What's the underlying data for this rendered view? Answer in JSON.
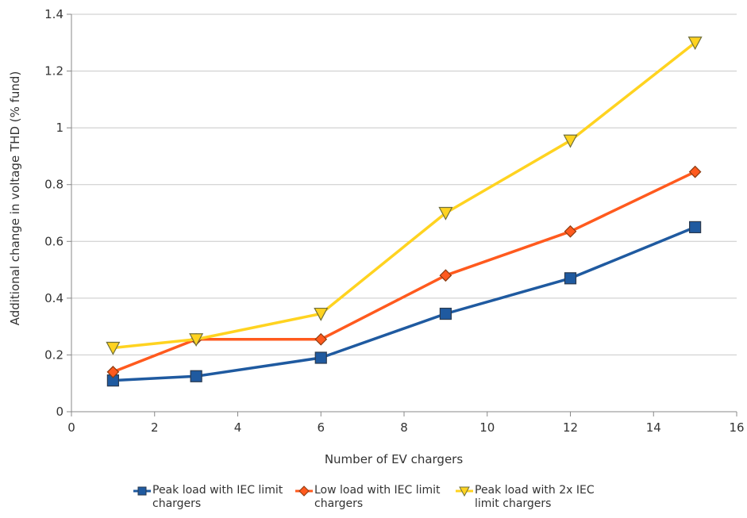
{
  "chart_data": {
    "type": "line",
    "title": "",
    "xlabel": "Number of EV chargers",
    "ylabel": "Additional change in voltage THD (% fund)",
    "xlim": [
      0,
      16
    ],
    "ylim": [
      0,
      1.4
    ],
    "x_ticks": [
      0,
      2,
      4,
      6,
      8,
      10,
      12,
      14,
      16
    ],
    "y_ticks": [
      0,
      0.2,
      0.4,
      0.6,
      0.8,
      1,
      1.2,
      1.4
    ],
    "x_tick_labels": [
      "0",
      "2",
      "4",
      "6",
      "8",
      "10",
      "12",
      "14",
      "16"
    ],
    "y_tick_labels": [
      "0",
      "0.2",
      "0.4",
      "0.6",
      "0.8",
      "1",
      "1.2",
      "1.4"
    ],
    "grid": "horizontal",
    "legend_position": "bottom",
    "series": [
      {
        "name": "Peak load with IEC limit chargers",
        "color": "#1f5aa0",
        "marker": "square",
        "x": [
          1,
          3,
          6,
          9,
          12,
          15
        ],
        "y": [
          0.11,
          0.125,
          0.19,
          0.345,
          0.47,
          0.65
        ]
      },
      {
        "name": "Low load with IEC limit chargers",
        "color": "#ff5a1e",
        "marker": "diamond",
        "x": [
          1,
          3,
          6,
          9,
          12,
          15
        ],
        "y": [
          0.14,
          0.255,
          0.255,
          0.48,
          0.635,
          0.845
        ]
      },
      {
        "name": "Peak load with 2x IEC limit chargers",
        "color": "#ffd320",
        "marker": "triangle-down",
        "x": [
          1,
          3,
          6,
          9,
          12,
          15
        ],
        "y": [
          0.225,
          0.255,
          0.345,
          0.7,
          0.955,
          1.3
        ]
      }
    ]
  }
}
